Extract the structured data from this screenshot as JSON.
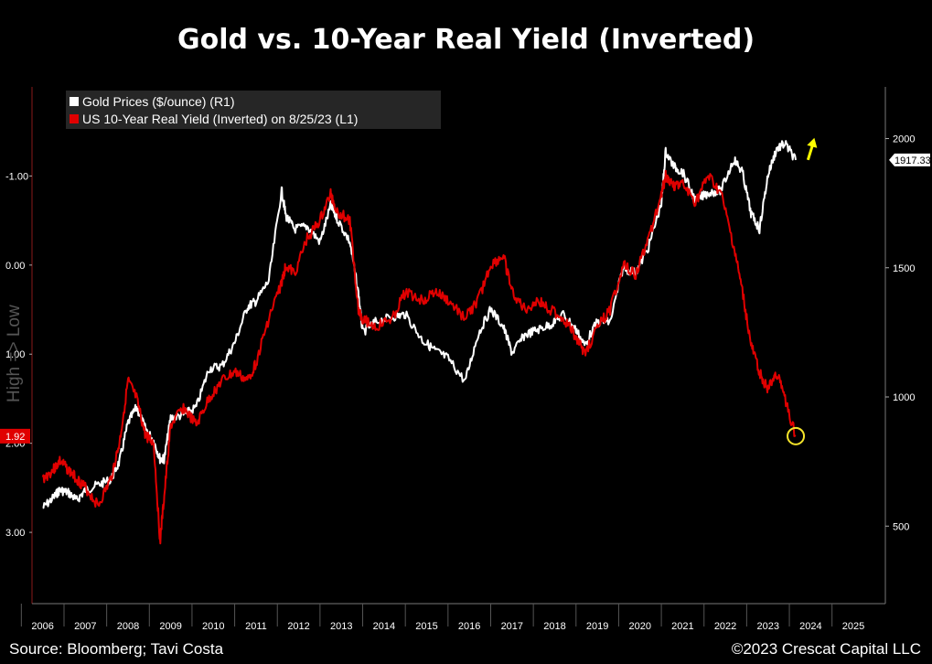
{
  "title": "Gold vs. 10-Year Real Yield (Inverted)",
  "source": "Source: Bloomberg; Tavi Costa",
  "copyright": "©2023 Crescat Capital LLC",
  "chart_data": {
    "type": "line",
    "left_axis_label": "High => Low",
    "left_axis": {
      "ticks": [
        "-1.00",
        "0.00",
        "1.00",
        "2.00",
        "3.00"
      ],
      "inverted": true,
      "range": [
        -2.0,
        3.8
      ]
    },
    "right_axis": {
      "ticks": [
        "2000",
        "1500",
        "1000",
        "500"
      ],
      "range": [
        200,
        2200
      ]
    },
    "x_ticks": [
      "2006",
      "2007",
      "2008",
      "2009",
      "2010",
      "2011",
      "2012",
      "2013",
      "2014",
      "2015",
      "2016",
      "2017",
      "2018",
      "2019",
      "2020",
      "2021",
      "2022",
      "2023",
      "2024",
      "2025"
    ],
    "legend": {
      "position": "top-left",
      "entries": [
        "Gold Prices ($/ounce) (R1)",
        "US 10-Year Real Yield (Inverted) on 8/25/23 (L1)"
      ]
    },
    "last_value_labels": {
      "gold": "1917.33",
      "real_yield": "1.92"
    },
    "colors": {
      "gold": "#ffffff",
      "real_yield": "#e00000",
      "circle": "#f5e42a",
      "arrow": "#ffff00"
    },
    "series": [
      {
        "name": "Gold Prices ($/ounce) (R1)",
        "axis": "right",
        "x": [
          2006.0,
          2006.25,
          2006.4,
          2006.6,
          2006.8,
          2007.0,
          2007.3,
          2007.6,
          2007.8,
          2008.0,
          2008.2,
          2008.4,
          2008.6,
          2008.75,
          2008.85,
          2009.0,
          2009.3,
          2009.6,
          2009.9,
          2010.2,
          2010.5,
          2010.8,
          2011.0,
          2011.3,
          2011.6,
          2011.7,
          2011.9,
          2012.2,
          2012.5,
          2012.75,
          2012.9,
          2013.2,
          2013.4,
          2013.5,
          2013.8,
          2014.2,
          2014.5,
          2014.9,
          2015.2,
          2015.5,
          2015.9,
          2016.2,
          2016.5,
          2016.8,
          2017.0,
          2017.3,
          2017.6,
          2017.9,
          2018.2,
          2018.5,
          2018.7,
          2019.0,
          2019.3,
          2019.6,
          2019.9,
          2020.2,
          2020.5,
          2020.6,
          2020.8,
          2021.0,
          2021.3,
          2021.6,
          2021.9,
          2022.2,
          2022.4,
          2022.6,
          2022.8,
          2023.0,
          2023.2,
          2023.4,
          2023.65
        ],
        "values": [
          570,
          610,
          640,
          630,
          600,
          640,
          660,
          680,
          750,
          900,
          960,
          880,
          830,
          760,
          760,
          920,
          930,
          960,
          1110,
          1120,
          1210,
          1350,
          1370,
          1450,
          1800,
          1700,
          1650,
          1660,
          1600,
          1740,
          1690,
          1600,
          1400,
          1250,
          1290,
          1310,
          1320,
          1220,
          1180,
          1150,
          1060,
          1240,
          1340,
          1270,
          1170,
          1240,
          1260,
          1280,
          1320,
          1260,
          1200,
          1290,
          1290,
          1500,
          1480,
          1580,
          1750,
          1950,
          1890,
          1870,
          1760,
          1790,
          1800,
          1920,
          1870,
          1710,
          1650,
          1860,
          1960,
          1980,
          1917.33
        ]
      },
      {
        "name": "US 10-Year Real Yield (Inverted) on 8/25/23 (L1)",
        "axis": "left",
        "x": [
          2006.0,
          2006.25,
          2006.4,
          2006.6,
          2006.8,
          2007.0,
          2007.3,
          2007.6,
          2007.8,
          2008.0,
          2008.2,
          2008.4,
          2008.6,
          2008.75,
          2008.85,
          2009.0,
          2009.3,
          2009.6,
          2009.9,
          2010.2,
          2010.5,
          2010.8,
          2011.0,
          2011.3,
          2011.6,
          2011.7,
          2011.9,
          2012.2,
          2012.5,
          2012.75,
          2012.9,
          2013.2,
          2013.4,
          2013.5,
          2013.8,
          2014.2,
          2014.5,
          2014.9,
          2015.2,
          2015.5,
          2015.9,
          2016.2,
          2016.5,
          2016.8,
          2017.0,
          2017.3,
          2017.6,
          2017.9,
          2018.2,
          2018.5,
          2018.7,
          2019.0,
          2019.3,
          2019.6,
          2019.9,
          2020.2,
          2020.5,
          2020.6,
          2020.8,
          2021.0,
          2021.3,
          2021.6,
          2021.9,
          2022.2,
          2022.4,
          2022.6,
          2022.8,
          2023.0,
          2023.2,
          2023.4,
          2023.65
        ],
        "values": [
          2.4,
          2.3,
          2.2,
          2.3,
          2.4,
          2.5,
          2.7,
          2.4,
          2.0,
          1.3,
          1.5,
          1.9,
          2.0,
          3.1,
          2.6,
          1.8,
          1.6,
          1.8,
          1.5,
          1.3,
          1.2,
          1.3,
          1.1,
          0.6,
          0.2,
          0.0,
          0.1,
          -0.3,
          -0.5,
          -0.8,
          -0.6,
          -0.5,
          0.5,
          0.6,
          0.7,
          0.6,
          0.3,
          0.4,
          0.3,
          0.4,
          0.6,
          0.4,
          0.0,
          -0.1,
          0.3,
          0.5,
          0.4,
          0.5,
          0.6,
          0.8,
          1.0,
          0.7,
          0.5,
          0.0,
          0.1,
          -0.3,
          -0.8,
          -1.0,
          -0.9,
          -0.9,
          -0.7,
          -1.0,
          -0.8,
          -0.2,
          0.3,
          0.9,
          1.2,
          1.4,
          1.2,
          1.5,
          1.92
        ]
      }
    ]
  }
}
